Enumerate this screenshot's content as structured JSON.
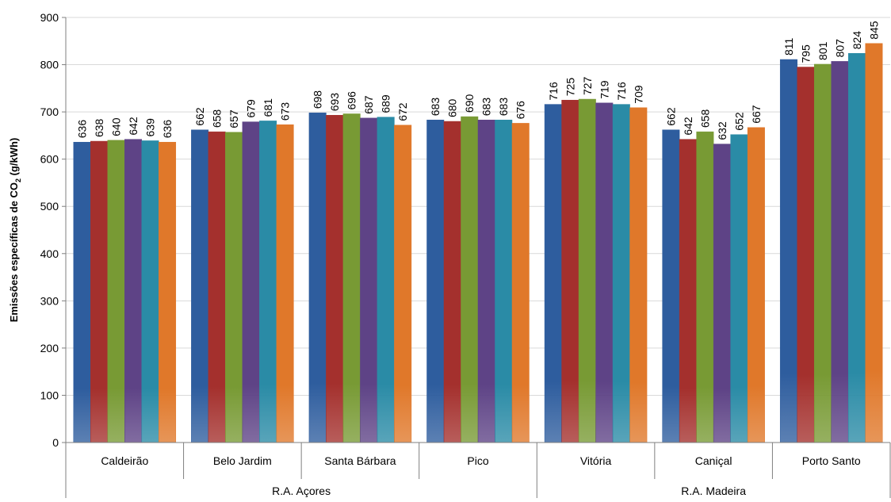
{
  "chart_data": {
    "type": "bar",
    "title": "",
    "xlabel": "",
    "ylabel_main": "Emissões específicas de CO",
    "ylabel_sub": "2",
    "ylabel_tail": " (g/kWh)",
    "ylim": [
      0,
      900
    ],
    "yticks": [
      0,
      100,
      200,
      300,
      400,
      500,
      600,
      700,
      800,
      900
    ],
    "grid": true,
    "legend": "none",
    "categories": [
      "Caldeirão",
      "Belo Jardim",
      "Santa Bárbara",
      "Pico",
      "Vitória",
      "Caniçal",
      "Porto Santo"
    ],
    "groups": [
      {
        "label": "R.A. Açores",
        "categories": [
          "Caldeirão",
          "Belo Jardim",
          "Santa Bárbara",
          "Pico"
        ]
      },
      {
        "label": "R.A. Madeira",
        "categories": [
          "Vitória",
          "Caniçal",
          "Porto Santo"
        ]
      }
    ],
    "series_colors": [
      "#2e5d9e",
      "#a4302d",
      "#789a34",
      "#5e4386",
      "#2a8ba6",
      "#e0782a"
    ],
    "values": [
      [
        636,
        638,
        640,
        642,
        639,
        636
      ],
      [
        662,
        658,
        657,
        679,
        681,
        673
      ],
      [
        698,
        693,
        696,
        687,
        689,
        672
      ],
      [
        683,
        680,
        690,
        683,
        683,
        676
      ],
      [
        716,
        725,
        727,
        719,
        716,
        709
      ],
      [
        662,
        642,
        658,
        632,
        652,
        667
      ],
      [
        811,
        795,
        801,
        807,
        824,
        845
      ]
    ]
  }
}
